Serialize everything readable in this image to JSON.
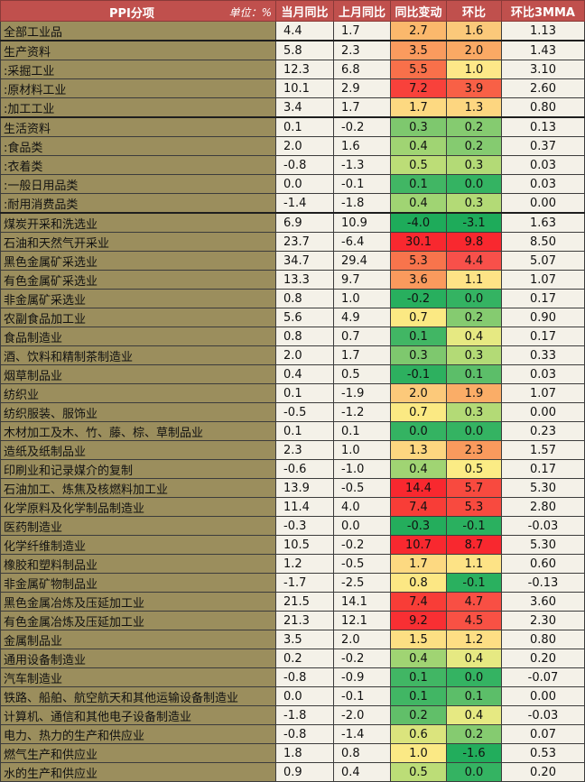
{
  "header": {
    "name_col": "PPI分项",
    "unit": "单位：%",
    "cols": [
      "当月同比",
      "上月同比",
      "同比变动",
      "环比",
      "环比3MMA"
    ]
  },
  "rows": [
    {
      "name": "全部工业品",
      "cur": "4.4",
      "prev": "1.7",
      "chg": "2.7",
      "mom": "1.6",
      "mma": "1.13",
      "chg_color": "#fbb86c",
      "mom_color": "#fbc97a"
    },
    {
      "name": "生产资料",
      "cur": "5.8",
      "prev": "2.3",
      "chg": "3.5",
      "mom": "2.0",
      "mma": "1.43",
      "chg_color": "#fa9b5e",
      "mom_color": "#faa964",
      "group_top": true
    },
    {
      "name": ":采掘工业",
      "cur": "12.3",
      "prev": "6.8",
      "chg": "5.5",
      "mom": "1.0",
      "mma": "3.10",
      "chg_color": "#f8704a",
      "mom_color": "#fde888"
    },
    {
      "name": ":原材料工业",
      "cur": "10.1",
      "prev": "2.9",
      "chg": "7.2",
      "mom": "3.9",
      "mma": "2.60",
      "chg_color": "#f8413b",
      "mom_color": "#f86046"
    },
    {
      "name": ":加工工业",
      "cur": "3.4",
      "prev": "1.7",
      "chg": "1.7",
      "mom": "1.3",
      "mma": "0.80",
      "chg_color": "#fdd981",
      "mom_color": "#fdd680"
    },
    {
      "name": "生活资料",
      "cur": "0.1",
      "prev": "-0.2",
      "chg": "0.3",
      "mom": "0.2",
      "mma": "0.13",
      "chg_color": "#7ec86e",
      "mom_color": "#85cb70",
      "group_top": true
    },
    {
      "name": ":食品类",
      "cur": "2.0",
      "prev": "1.6",
      "chg": "0.4",
      "mom": "0.2",
      "mma": "0.37",
      "chg_color": "#a0d473",
      "mom_color": "#85cb70"
    },
    {
      "name": ":衣着类",
      "cur": "-0.8",
      "prev": "-1.3",
      "chg": "0.5",
      "mom": "0.3",
      "mma": "0.03",
      "chg_color": "#bcdd77",
      "mom_color": "#b3da76"
    },
    {
      "name": ":一般日用品类",
      "cur": "0.0",
      "prev": "-0.1",
      "chg": "0.1",
      "mom": "0.0",
      "mma": "0.03",
      "chg_color": "#41b664",
      "mom_color": "#34b362"
    },
    {
      "name": ":耐用消费品类",
      "cur": "-1.4",
      "prev": "-1.8",
      "chg": "0.4",
      "mom": "0.3",
      "mma": "0.00",
      "chg_color": "#a0d473",
      "mom_color": "#b3da76"
    },
    {
      "name": "煤炭开采和洗选业",
      "cur": "6.9",
      "prev": "10.9",
      "chg": "-4.0",
      "mom": "-3.1",
      "mma": "1.63",
      "chg_color": "#1eab5a",
      "mom_color": "#1eab5a",
      "group_top": true
    },
    {
      "name": "石油和天然气开采业",
      "cur": "23.7",
      "prev": "-6.4",
      "chg": "30.1",
      "mom": "9.8",
      "mma": "8.50",
      "chg_color": "#f8282f",
      "mom_color": "#f8282f"
    },
    {
      "name": "黑色金属矿采选业",
      "cur": "34.7",
      "prev": "29.4",
      "chg": "5.3",
      "mom": "4.4",
      "mma": "5.07",
      "chg_color": "#f8744c",
      "mom_color": "#f8504a"
    },
    {
      "name": "有色金属矿采选业",
      "cur": "13.3",
      "prev": "9.7",
      "chg": "3.6",
      "mom": "1.1",
      "mma": "1.07",
      "chg_color": "#fa9a5d",
      "mom_color": "#fde386"
    },
    {
      "name": "非金属矿采选业",
      "cur": "0.8",
      "prev": "1.0",
      "chg": "-0.2",
      "mom": "0.0",
      "mma": "0.17",
      "chg_color": "#28af5e",
      "mom_color": "#34b362"
    },
    {
      "name": "农副食品加工业",
      "cur": "5.6",
      "prev": "4.9",
      "chg": "0.7",
      "mom": "0.2",
      "mma": "0.90",
      "chg_color": "#fbe983",
      "mom_color": "#85cb70"
    },
    {
      "name": "食品制造业",
      "cur": "0.8",
      "prev": "0.7",
      "chg": "0.1",
      "mom": "0.4",
      "mma": "0.17",
      "chg_color": "#41b664",
      "mom_color": "#e6e982"
    },
    {
      "name": "酒、饮料和精制茶制造业",
      "cur": "2.0",
      "prev": "1.7",
      "chg": "0.3",
      "mom": "0.3",
      "mma": "0.33",
      "chg_color": "#7ec86e",
      "mom_color": "#b3da76"
    },
    {
      "name": "烟草制品业",
      "cur": "0.4",
      "prev": "0.5",
      "chg": "-0.1",
      "mom": "0.1",
      "mma": "0.03",
      "chg_color": "#2db05f",
      "mom_color": "#5cbe69"
    },
    {
      "name": "纺织业",
      "cur": "0.1",
      "prev": "-1.9",
      "chg": "2.0",
      "mom": "1.9",
      "mma": "1.07",
      "chg_color": "#fcc97a",
      "mom_color": "#faad67"
    },
    {
      "name": "纺织服装、服饰业",
      "cur": "-0.5",
      "prev": "-1.2",
      "chg": "0.7",
      "mom": "0.3",
      "mma": "0.00",
      "chg_color": "#fbe983",
      "mom_color": "#b3da76"
    },
    {
      "name": "木材加工及木、竹、藤、棕、草制品业",
      "cur": "0.1",
      "prev": "0.1",
      "chg": "0.0",
      "mom": "0.0",
      "mma": "0.23",
      "chg_color": "#34b362",
      "mom_color": "#34b362"
    },
    {
      "name": "造纸及纸制品业",
      "cur": "2.3",
      "prev": "1.0",
      "chg": "1.3",
      "mom": "2.3",
      "mma": "1.57",
      "chg_color": "#fdd680",
      "mom_color": "#f99a5d"
    },
    {
      "name": "印刷业和记录媒介的复制",
      "cur": "-0.6",
      "prev": "-1.0",
      "chg": "0.4",
      "mom": "0.5",
      "mma": "0.17",
      "chg_color": "#a0d473",
      "mom_color": "#fbec85"
    },
    {
      "name": "石油加工、炼焦及核燃料加工业",
      "cur": "13.9",
      "prev": "-0.5",
      "chg": "14.4",
      "mom": "5.7",
      "mma": "5.30",
      "chg_color": "#f8282f",
      "mom_color": "#f84a3f"
    },
    {
      "name": "化学原料及化学制品制造业",
      "cur": "11.4",
      "prev": "4.0",
      "chg": "7.4",
      "mom": "5.3",
      "mma": "2.80",
      "chg_color": "#f83d37",
      "mom_color": "#f84a3f"
    },
    {
      "name": "医药制造业",
      "cur": "-0.3",
      "prev": "0.0",
      "chg": "-0.3",
      "mom": "-0.1",
      "mma": "-0.03",
      "chg_color": "#24ad5c",
      "mom_color": "#2ab05f"
    },
    {
      "name": "化学纤维制造业",
      "cur": "10.5",
      "prev": "-0.2",
      "chg": "10.7",
      "mom": "8.7",
      "mma": "5.30",
      "chg_color": "#f8282f",
      "mom_color": "#f8282f"
    },
    {
      "name": "橡胶和塑料制品业",
      "cur": "1.2",
      "prev": "-0.5",
      "chg": "1.7",
      "mom": "1.1",
      "mma": "0.60",
      "chg_color": "#fdd981",
      "mom_color": "#fde386"
    },
    {
      "name": "非金属矿物制品业",
      "cur": "-1.7",
      "prev": "-2.5",
      "chg": "0.8",
      "mom": "-0.1",
      "mma": "-0.13",
      "chg_color": "#fce784",
      "mom_color": "#2ab05f"
    },
    {
      "name": "黑色金属冶炼及压延加工业",
      "cur": "21.5",
      "prev": "14.1",
      "chg": "7.4",
      "mom": "4.7",
      "mma": "3.60",
      "chg_color": "#f83d37",
      "mom_color": "#f84f44"
    },
    {
      "name": "有色金属冶炼及压延加工业",
      "cur": "21.3",
      "prev": "12.1",
      "chg": "9.2",
      "mom": "4.5",
      "mma": "2.30",
      "chg_color": "#f82f33",
      "mom_color": "#f85144"
    },
    {
      "name": "金属制品业",
      "cur": "3.5",
      "prev": "2.0",
      "chg": "1.5",
      "mom": "1.2",
      "mma": "0.80",
      "chg_color": "#fcdf83",
      "mom_color": "#fdde84"
    },
    {
      "name": "通用设备制造业",
      "cur": "0.2",
      "prev": "-0.2",
      "chg": "0.4",
      "mom": "0.4",
      "mma": "0.20",
      "chg_color": "#a0d473",
      "mom_color": "#e6e982"
    },
    {
      "name": "汽车制造业",
      "cur": "-0.8",
      "prev": "-0.9",
      "chg": "0.1",
      "mom": "0.0",
      "mma": "-0.07",
      "chg_color": "#41b664",
      "mom_color": "#34b362"
    },
    {
      "name": "铁路、船舶、航空航天和其他运输设备制造业",
      "cur": "0.0",
      "prev": "-0.1",
      "chg": "0.1",
      "mom": "0.1",
      "mma": "0.00",
      "chg_color": "#41b664",
      "mom_color": "#5cbe69"
    },
    {
      "name": "计算机、通信和其他电子设备制造业",
      "cur": "-1.8",
      "prev": "-2.0",
      "chg": "0.2",
      "mom": "0.4",
      "mma": "-0.03",
      "chg_color": "#61bf69",
      "mom_color": "#e6e982"
    },
    {
      "name": "电力、热力的生产和供应业",
      "cur": "-0.8",
      "prev": "-1.4",
      "chg": "0.6",
      "mom": "0.2",
      "mma": "0.07",
      "chg_color": "#dbe47d",
      "mom_color": "#85cb70"
    },
    {
      "name": "燃气生产和供应业",
      "cur": "1.8",
      "prev": "0.8",
      "chg": "1.0",
      "mom": "-1.6",
      "mma": "0.53",
      "chg_color": "#fbe985",
      "mom_color": "#22ad5c"
    },
    {
      "name": "水的生产和供应业",
      "cur": "0.9",
      "prev": "0.4",
      "chg": "0.5",
      "mom": "0.0",
      "mma": "0.20",
      "chg_color": "#bcdd77",
      "mom_color": "#34b362"
    }
  ]
}
